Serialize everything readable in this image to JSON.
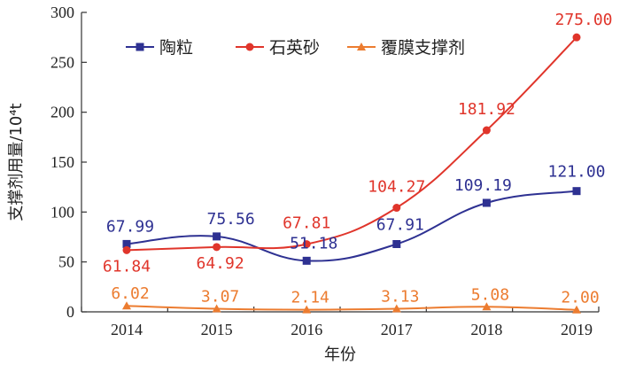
{
  "chart_data": {
    "type": "line",
    "title": "",
    "xlabel": "年份",
    "ylabel": "支撑剂用量/10⁴t",
    "ylim": [
      0,
      300
    ],
    "yticks": [
      "0",
      "50",
      "100",
      "150",
      "200",
      "250",
      "300"
    ],
    "categories": [
      "2014",
      "2015",
      "2016",
      "2017",
      "2018",
      "2019"
    ],
    "grid": false,
    "legend_position": "top",
    "series": [
      {
        "name": "陶粒",
        "color": "#2e3192",
        "marker": "square",
        "values": [
          67.99,
          75.56,
          51.18,
          67.91,
          109.19,
          121.0
        ],
        "labels": [
          "67.99",
          "75.56",
          "51.18",
          "67.91",
          "109.19",
          "121.00"
        ]
      },
      {
        "name": "石英砂",
        "color": "#e0352b",
        "marker": "circle",
        "values": [
          61.84,
          64.92,
          67.81,
          104.27,
          181.92,
          275.0
        ],
        "labels": [
          "61.84",
          "64.92",
          "67.81",
          "104.27",
          "181.92",
          "275.00"
        ]
      },
      {
        "name": "覆膜支撑剂",
        "color": "#ec7c30",
        "marker": "triangle",
        "values": [
          6.02,
          3.07,
          2.14,
          3.13,
          5.08,
          2.0
        ],
        "labels": [
          "6.02",
          "3.07",
          "2.14",
          "3.13",
          "5.08",
          "2.00"
        ]
      }
    ]
  }
}
